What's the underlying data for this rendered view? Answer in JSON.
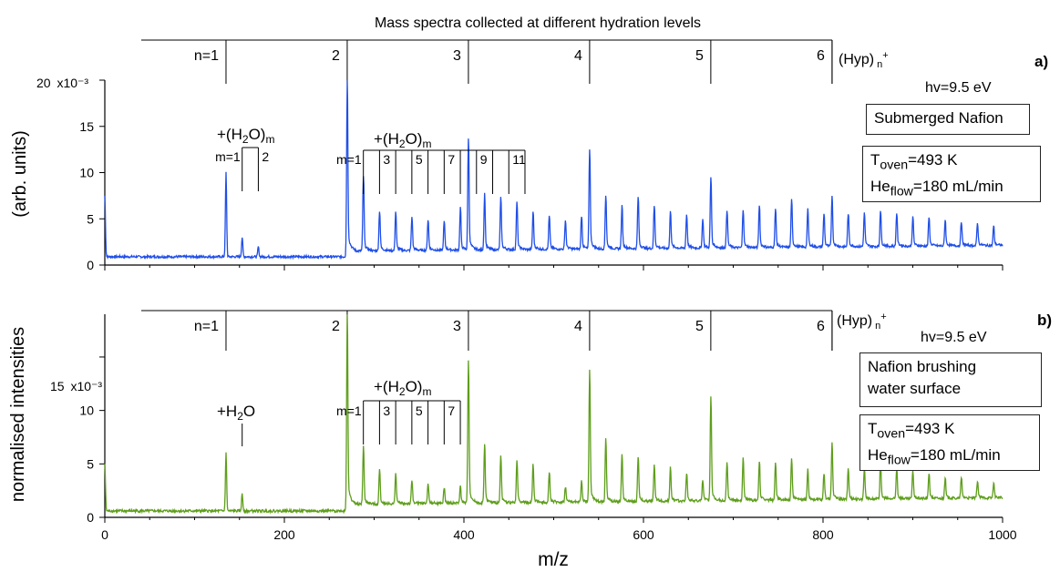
{
  "figure_title": "Mass spectra collected at different hydration levels",
  "x_axis_label": "m/z",
  "x_ticks": [
    "0",
    "200",
    "400",
    "600",
    "800",
    "1000"
  ],
  "colors": {
    "panel_a": "#1f4ee8",
    "panel_b": "#5e9e1b"
  },
  "chart_data": [
    {
      "panel": "a)",
      "type": "line",
      "ylabel": "(arb. units)",
      "yscale_label": "x10⁻³",
      "y_ticks": [
        "0",
        "5",
        "10",
        "15",
        "20"
      ],
      "ylim": [
        0,
        20
      ],
      "xlim": [
        0,
        1000
      ],
      "series_label": "(Hyp)ₙ⁺",
      "cluster_labels": [
        "n=1",
        "2",
        "3",
        "4",
        "5",
        "6"
      ],
      "cluster_positions_mz": [
        135,
        270,
        405,
        540,
        675,
        810
      ],
      "annotations": {
        "hv": "hv=9.5 eV",
        "sample": "Submerged Nafion",
        "t_oven": "Toven=493 K",
        "he_flow": "Heflow=180 mL/min",
        "water_label_1": "+(H2O)m",
        "water_m_labels_1": [
          "m=1",
          "2"
        ],
        "water_label_2": "+(H2O)m",
        "water_m_labels_2": [
          "m=1",
          "3",
          "5",
          "7",
          "9",
          "11"
        ]
      },
      "peaks": [
        {
          "mz": 0,
          "y": 7.5
        },
        {
          "mz": 135,
          "y": 10
        },
        {
          "mz": 153,
          "y": 3
        },
        {
          "mz": 171,
          "y": 2
        },
        {
          "mz": 270,
          "y": 20
        },
        {
          "mz": 288,
          "y": 9
        },
        {
          "mz": 306,
          "y": 5.2
        },
        {
          "mz": 324,
          "y": 5.1
        },
        {
          "mz": 342,
          "y": 4.5
        },
        {
          "mz": 360,
          "y": 4.2
        },
        {
          "mz": 378,
          "y": 4.0
        },
        {
          "mz": 396,
          "y": 5.5
        },
        {
          "mz": 405,
          "y": 13
        },
        {
          "mz": 423,
          "y": 7
        },
        {
          "mz": 441,
          "y": 6.5
        },
        {
          "mz": 459,
          "y": 6
        },
        {
          "mz": 477,
          "y": 5
        },
        {
          "mz": 495,
          "y": 4.5
        },
        {
          "mz": 513,
          "y": 4
        },
        {
          "mz": 531,
          "y": 4.5
        },
        {
          "mz": 540,
          "y": 11.7
        },
        {
          "mz": 558,
          "y": 6.7
        },
        {
          "mz": 576,
          "y": 5.5
        },
        {
          "mz": 594,
          "y": 6.5
        },
        {
          "mz": 612,
          "y": 5.5
        },
        {
          "mz": 630,
          "y": 5
        },
        {
          "mz": 648,
          "y": 4.5
        },
        {
          "mz": 666,
          "y": 4
        },
        {
          "mz": 675,
          "y": 8.5
        },
        {
          "mz": 693,
          "y": 5
        },
        {
          "mz": 711,
          "y": 5
        },
        {
          "mz": 729,
          "y": 5.5
        },
        {
          "mz": 747,
          "y": 5
        },
        {
          "mz": 765,
          "y": 6
        },
        {
          "mz": 783,
          "y": 5
        },
        {
          "mz": 801,
          "y": 4.5
        },
        {
          "mz": 810,
          "y": 6.5
        },
        {
          "mz": 828,
          "y": 4.5
        },
        {
          "mz": 846,
          "y": 4.5
        },
        {
          "mz": 864,
          "y": 4.8
        },
        {
          "mz": 882,
          "y": 4.5
        },
        {
          "mz": 900,
          "y": 4
        },
        {
          "mz": 918,
          "y": 4
        },
        {
          "mz": 936,
          "y": 3.7
        },
        {
          "mz": 954,
          "y": 3.5
        },
        {
          "mz": 972,
          "y": 3.3
        },
        {
          "mz": 990,
          "y": 3
        }
      ]
    },
    {
      "panel": "b)",
      "type": "line",
      "ylabel": "normalised intensities",
      "yscale_label": "x10⁻³",
      "y_ticks": [
        "0",
        "5",
        "10",
        "15"
      ],
      "ylim": [
        0,
        19
      ],
      "xlim": [
        0,
        1000
      ],
      "series_label": "(Hyp)ₙ⁺",
      "cluster_labels": [
        "n=1",
        "2",
        "3",
        "4",
        "5",
        "6"
      ],
      "cluster_positions_mz": [
        135,
        270,
        405,
        540,
        675,
        810
      ],
      "annotations": {
        "hv": "hv=9.5 eV",
        "sample": "Nafion brushing water surface",
        "t_oven": "Toven=493 K",
        "he_flow": "Heflow=180 mL/min",
        "water_label_1": "+H2O",
        "water_label_2": "+(H2O)m",
        "water_m_labels_2": [
          "m=1",
          "3",
          "5",
          "7"
        ]
      },
      "peaks": [
        {
          "mz": 0,
          "y": 5
        },
        {
          "mz": 135,
          "y": 6
        },
        {
          "mz": 153,
          "y": 2.2
        },
        {
          "mz": 270,
          "y": 19
        },
        {
          "mz": 288,
          "y": 6
        },
        {
          "mz": 306,
          "y": 3.8
        },
        {
          "mz": 324,
          "y": 3.5
        },
        {
          "mz": 342,
          "y": 2.7
        },
        {
          "mz": 360,
          "y": 2.4
        },
        {
          "mz": 378,
          "y": 2.0
        },
        {
          "mz": 396,
          "y": 2.2
        },
        {
          "mz": 405,
          "y": 14
        },
        {
          "mz": 423,
          "y": 6.2
        },
        {
          "mz": 441,
          "y": 5
        },
        {
          "mz": 459,
          "y": 4.5
        },
        {
          "mz": 477,
          "y": 4.2
        },
        {
          "mz": 495,
          "y": 3.5
        },
        {
          "mz": 513,
          "y": 2
        },
        {
          "mz": 531,
          "y": 2.5
        },
        {
          "mz": 540,
          "y": 13
        },
        {
          "mz": 558,
          "y": 6.5
        },
        {
          "mz": 576,
          "y": 5
        },
        {
          "mz": 594,
          "y": 4.8
        },
        {
          "mz": 612,
          "y": 4
        },
        {
          "mz": 630,
          "y": 3.8
        },
        {
          "mz": 648,
          "y": 3.2
        },
        {
          "mz": 666,
          "y": 2.5
        },
        {
          "mz": 675,
          "y": 10.3
        },
        {
          "mz": 693,
          "y": 4.2
        },
        {
          "mz": 711,
          "y": 4.5
        },
        {
          "mz": 729,
          "y": 4.3
        },
        {
          "mz": 747,
          "y": 4
        },
        {
          "mz": 765,
          "y": 4.5
        },
        {
          "mz": 783,
          "y": 3.5
        },
        {
          "mz": 801,
          "y": 3
        },
        {
          "mz": 810,
          "y": 6
        },
        {
          "mz": 828,
          "y": 3.5
        },
        {
          "mz": 846,
          "y": 3.5
        },
        {
          "mz": 864,
          "y": 4
        },
        {
          "mz": 882,
          "y": 3.5
        },
        {
          "mz": 900,
          "y": 3.2
        },
        {
          "mz": 918,
          "y": 3
        },
        {
          "mz": 936,
          "y": 2.5
        },
        {
          "mz": 954,
          "y": 2.5
        },
        {
          "mz": 972,
          "y": 2.2
        },
        {
          "mz": 990,
          "y": 2
        }
      ]
    }
  ]
}
